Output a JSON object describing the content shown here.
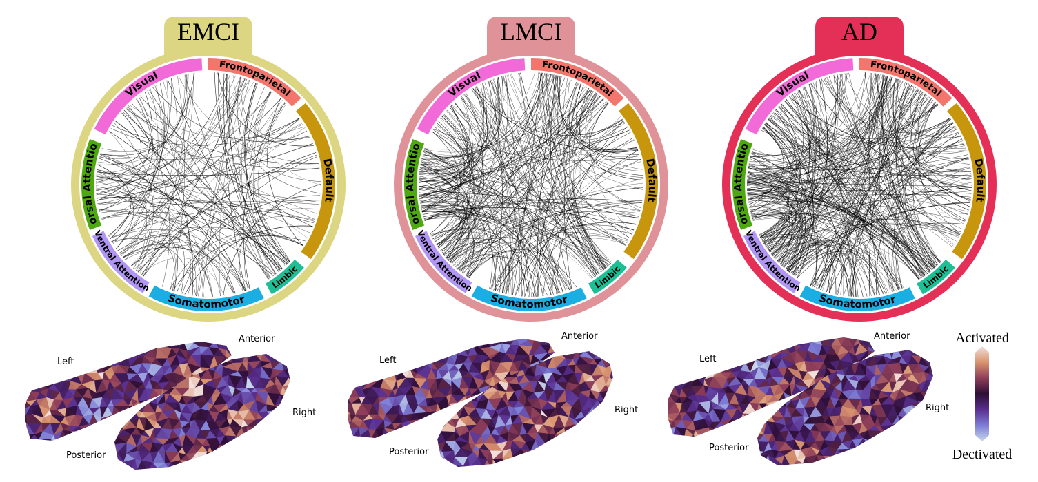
{
  "panels": [
    {
      "id": "emci",
      "group_label": "EMCI",
      "accent_color": "#dcd683",
      "networks": {
        "visual": "Visual",
        "frontoparietal": "Frontoparietal",
        "default": "Default",
        "limbic": "Limbic",
        "somatomotor": "Somatomotor",
        "ventral_attention": "Ventral Attention",
        "dorsal_attention": "Dorsal Attention"
      },
      "brain_labels": {
        "left": "Left",
        "right": "Right",
        "anterior": "Anterior",
        "posterior": "Posterior"
      }
    },
    {
      "id": "lmci",
      "group_label": "LMCI",
      "accent_color": "#df9399",
      "networks": {
        "visual": "Visual",
        "frontoparietal": "Frontoparietal",
        "default": "Default",
        "limbic": "Limbic",
        "somatomotor": "Somatomotor",
        "ventral_attention": "Ventral Attention",
        "dorsal_attention": "Dorsal Attention"
      },
      "brain_labels": {
        "left": "Left",
        "right": "Right",
        "anterior": "Anterior",
        "posterior": "Posterior"
      }
    },
    {
      "id": "ad",
      "group_label": "AD",
      "accent_color": "#e43057",
      "networks": {
        "visual": "Visual",
        "frontoparietal": "Frontoparietal",
        "default": "Default",
        "limbic": "Limbic",
        "somatomotor": "Somatomotor",
        "ventral_attention": "Ventral Attention",
        "dorsal_attention": "Dorsal Attention"
      },
      "brain_labels": {
        "left": "Left",
        "right": "Right",
        "anterior": "Anterior",
        "posterior": "Posterior"
      }
    }
  ],
  "network_colors": {
    "visual": "#f26ad8",
    "frontoparietal": "#f3756b",
    "default": "#c8960c",
    "limbic": "#1fbf95",
    "somatomotor": "#1aaee3",
    "ventral_attention": "#b196f3",
    "dorsal_attention": "#4ea80f"
  },
  "colorbar": {
    "top_label": "Activated",
    "bottom_label": "Dectivated",
    "colors": [
      "#f1e0dc",
      "#d9946e",
      "#8e3e5a",
      "#2e0f36",
      "#5a2f8f",
      "#7d7ed6",
      "#c8d8ea"
    ]
  }
}
